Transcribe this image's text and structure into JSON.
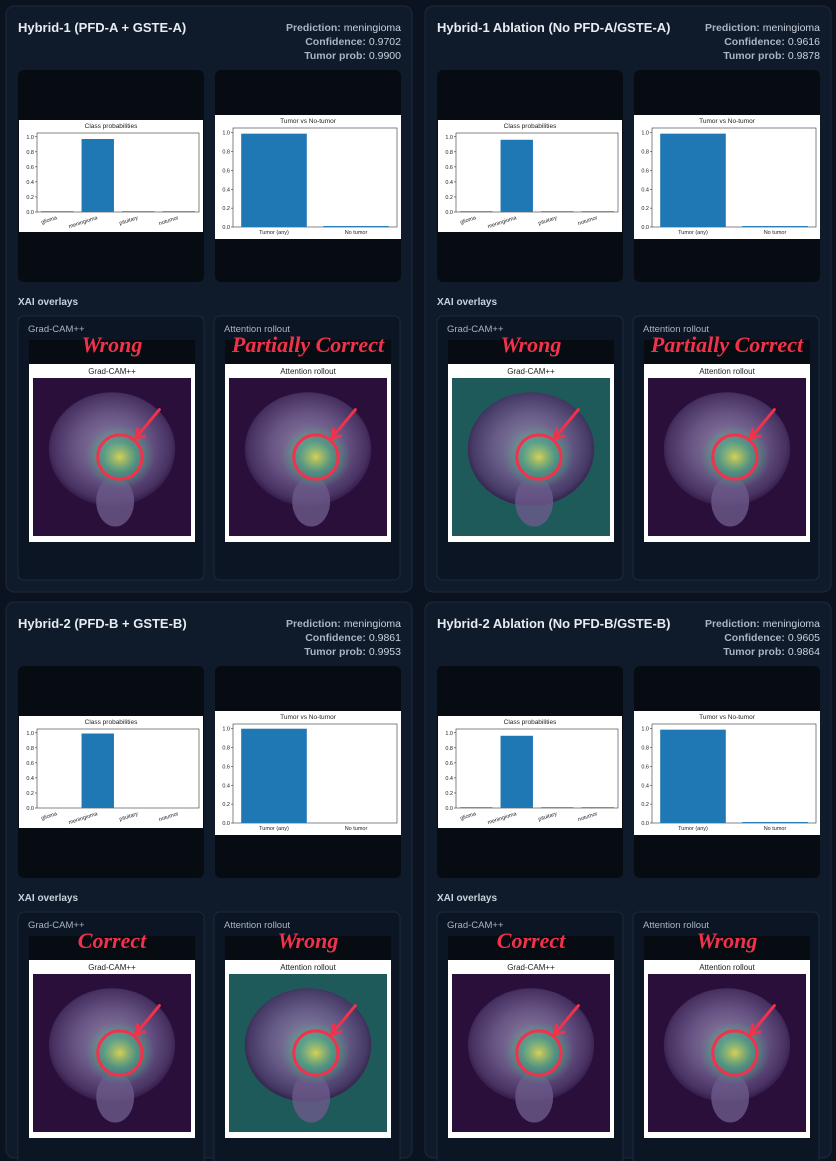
{
  "panels": [
    {
      "title": "Hybrid-1 (PFD-A + GSTE-A)",
      "prediction_label": "Prediction:",
      "prediction": "meningioma",
      "confidence_label": "Confidence:",
      "confidence": "0.9702",
      "tumor_prob_label": "Tumor prob:",
      "tumor_prob": "0.9900",
      "class_chart": {
        "type": "bar",
        "title": "Class probabilities",
        "categories": [
          "glioma",
          "meningioma",
          "pituitary",
          "notumor"
        ],
        "values": [
          0.01,
          0.97,
          0.01,
          0.01
        ],
        "color": "#1f77b4",
        "ylim": [
          0,
          1.05
        ],
        "yticks": [
          {
            "value": 0,
            "label": "0.0"
          },
          0.2,
          0.4,
          0.6,
          0.8,
          {
            "value": 1,
            "label": "1.0"
          }
        ]
      },
      "tumor_chart": {
        "type": "bar",
        "title": "Tumor vs No-tumor",
        "categories": [
          "Tumor (any)",
          "No tumor"
        ],
        "values": [
          0.99,
          0.01
        ],
        "color": "#1f77b4",
        "ylim": [
          0,
          1.05
        ],
        "yticks": [
          {
            "value": 0,
            "label": "0.0"
          },
          0.2,
          0.4,
          0.6,
          0.8,
          {
            "value": 1,
            "label": "1.0"
          }
        ]
      },
      "xai_heading": "XAI overlays",
      "overlays": [
        {
          "label": "Grad-CAM++",
          "image_title": "Grad-CAM++",
          "annotation": "Wrong"
        },
        {
          "label": "Attention rollout",
          "image_title": "Attention rollout",
          "annotation": "Partially Correct"
        }
      ]
    },
    {
      "title": "Hybrid-1 Ablation (No PFD-A/GSTE-A)",
      "prediction_label": "Prediction:",
      "prediction": "meningioma",
      "confidence_label": "Confidence:",
      "confidence": "0.9616",
      "tumor_prob_label": "Tumor prob:",
      "tumor_prob": "0.9878",
      "class_chart": {
        "type": "bar",
        "title": "Class probabilities",
        "categories": [
          "glioma",
          "meningioma",
          "pituitary",
          "notumor"
        ],
        "values": [
          0.01,
          0.96,
          0.01,
          0.01
        ],
        "color": "#1f77b4",
        "ylim": [
          0,
          1.05
        ],
        "yticks": [
          {
            "value": 0,
            "label": "0.0"
          },
          0.2,
          0.4,
          0.6,
          0.8,
          {
            "value": 1,
            "label": "1.0"
          }
        ]
      },
      "tumor_chart": {
        "type": "bar",
        "title": "Tumor vs No-tumor",
        "categories": [
          "Tumor (any)",
          "No tumor"
        ],
        "values": [
          0.99,
          0.01
        ],
        "color": "#1f77b4",
        "ylim": [
          0,
          1.05
        ],
        "yticks": [
          {
            "value": 0,
            "label": "0.0"
          },
          0.2,
          0.4,
          0.6,
          0.8,
          {
            "value": 1,
            "label": "1.0"
          }
        ]
      },
      "xai_heading": "XAI overlays",
      "overlays": [
        {
          "label": "Grad-CAM++",
          "image_title": "Grad-CAM++",
          "annotation": "Wrong"
        },
        {
          "label": "Attention rollout",
          "image_title": "Attention rollout",
          "annotation": "Partially Correct"
        }
      ]
    },
    {
      "title": "Hybrid-2 (PFD-B + GSTE-B)",
      "prediction_label": "Prediction:",
      "prediction": "meningioma",
      "confidence_label": "Confidence:",
      "confidence": "0.9861",
      "tumor_prob_label": "Tumor prob:",
      "tumor_prob": "0.9953",
      "class_chart": {
        "type": "bar",
        "title": "Class probabilities",
        "categories": [
          "glioma",
          "meningioma",
          "pituitary",
          "notumor"
        ],
        "values": [
          0.0,
          0.99,
          0.0,
          0.0
        ],
        "color": "#1f77b4",
        "ylim": [
          0,
          1.05
        ],
        "yticks": [
          {
            "value": 0,
            "label": "0.0"
          },
          0.2,
          0.4,
          0.6,
          0.8,
          {
            "value": 1,
            "label": "1.0"
          }
        ]
      },
      "tumor_chart": {
        "type": "bar",
        "title": "Tumor vs No-tumor",
        "categories": [
          "Tumor (any)",
          "No tumor"
        ],
        "values": [
          1.0,
          0.0
        ],
        "color": "#1f77b4",
        "ylim": [
          0,
          1.05
        ],
        "yticks": [
          {
            "value": 0,
            "label": "0.0"
          },
          0.2,
          0.4,
          0.6,
          0.8,
          {
            "value": 1,
            "label": "1.0"
          }
        ]
      },
      "xai_heading": "XAI overlays",
      "overlays": [
        {
          "label": "Grad-CAM++",
          "image_title": "Grad-CAM++",
          "annotation": "Correct"
        },
        {
          "label": "Attention rollout",
          "image_title": "Attention rollout",
          "annotation": "Wrong"
        }
      ]
    },
    {
      "title": "Hybrid-2 Ablation (No PFD-B/GSTE-B)",
      "prediction_label": "Prediction:",
      "prediction": "meningioma",
      "confidence_label": "Confidence:",
      "confidence": "0.9605",
      "tumor_prob_label": "Tumor prob:",
      "tumor_prob": "0.9864",
      "class_chart": {
        "type": "bar",
        "title": "Class probabilities",
        "categories": [
          "glioma",
          "meningioma",
          "pituitary",
          "notumor"
        ],
        "values": [
          0.01,
          0.96,
          0.01,
          0.01
        ],
        "color": "#1f77b4",
        "ylim": [
          0,
          1.05
        ],
        "yticks": [
          {
            "value": 0,
            "label": "0.0"
          },
          0.2,
          0.4,
          0.6,
          0.8,
          {
            "value": 1,
            "label": "1.0"
          }
        ]
      },
      "tumor_chart": {
        "type": "bar",
        "title": "Tumor vs No-tumor",
        "categories": [
          "Tumor (any)",
          "No tumor"
        ],
        "values": [
          0.99,
          0.01
        ],
        "color": "#1f77b4",
        "ylim": [
          0,
          1.05
        ],
        "yticks": [
          {
            "value": 0,
            "label": "0.0"
          },
          0.2,
          0.4,
          0.6,
          0.8,
          {
            "value": 1,
            "label": "1.0"
          }
        ]
      },
      "xai_heading": "XAI overlays",
      "overlays": [
        {
          "label": "Grad-CAM++",
          "image_title": "Grad-CAM++",
          "annotation": "Correct"
        },
        {
          "label": "Attention rollout",
          "image_title": "Attention rollout",
          "annotation": "Wrong"
        }
      ]
    }
  ]
}
